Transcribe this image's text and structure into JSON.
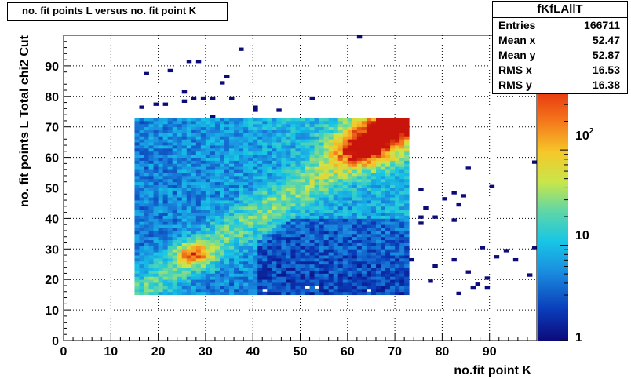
{
  "title": "no. fit points L versus no. fit point K",
  "stats": {
    "name": "fKfLAllT",
    "rows": [
      {
        "label": "Entries",
        "value": "166711"
      },
      {
        "label": "Mean x",
        "value": "52.47"
      },
      {
        "label": "Mean y",
        "value": "52.87"
      },
      {
        "label": "RMS x",
        "value": "16.53"
      },
      {
        "label": "RMS y",
        "value": "16.38"
      }
    ]
  },
  "chart_data": {
    "type": "heatmap",
    "title": "no. fit points L versus no. fit point K",
    "xlabel": "no.fit point K",
    "ylabel": "no. fit points  L  Total chi2 Cut",
    "xlim": [
      0,
      100
    ],
    "ylim": [
      0,
      100
    ],
    "x_ticks": [
      0,
      10,
      20,
      30,
      40,
      50,
      60,
      70,
      80,
      90
    ],
    "y_ticks": [
      0,
      10,
      20,
      30,
      40,
      50,
      60,
      70,
      80,
      90
    ],
    "grid": true,
    "colorbar": {
      "scale": "log",
      "range": [
        1,
        400
      ],
      "tick_labels": [
        "1",
        "10",
        "10^2"
      ]
    },
    "main_region": {
      "x": [
        15,
        73
      ],
      "y": [
        15,
        73
      ]
    },
    "hotspots": [
      {
        "x": 63,
        "y": 63,
        "level": "max"
      },
      {
        "x": 70,
        "y": 71,
        "level": "max"
      },
      {
        "x": 27,
        "y": 28,
        "level": "high"
      }
    ],
    "sparse_points": [
      [
        62,
        99
      ],
      [
        37,
        95
      ],
      [
        26,
        91
      ],
      [
        28,
        91
      ],
      [
        17,
        87
      ],
      [
        22,
        88
      ],
      [
        34,
        86
      ],
      [
        33,
        84
      ],
      [
        25,
        81
      ],
      [
        27,
        79
      ],
      [
        29,
        79
      ],
      [
        31,
        79
      ],
      [
        35,
        79
      ],
      [
        25,
        78
      ],
      [
        19,
        77
      ],
      [
        21,
        77
      ],
      [
        52,
        79
      ],
      [
        16,
        76
      ],
      [
        40,
        76
      ],
      [
        40,
        75
      ],
      [
        45,
        75
      ],
      [
        31,
        73
      ],
      [
        99,
        58
      ],
      [
        85,
        56
      ],
      [
        75,
        49
      ],
      [
        90,
        50
      ],
      [
        82,
        48
      ],
      [
        84,
        47
      ],
      [
        80,
        46
      ],
      [
        76,
        43
      ],
      [
        83,
        44
      ],
      [
        75,
        40
      ],
      [
        78,
        40
      ],
      [
        82,
        39
      ],
      [
        75,
        38
      ],
      [
        88,
        30
      ],
      [
        99,
        30
      ],
      [
        91,
        27
      ],
      [
        93,
        29
      ],
      [
        95,
        26
      ],
      [
        73,
        26
      ],
      [
        82,
        26
      ],
      [
        78,
        24
      ],
      [
        85,
        22
      ],
      [
        98,
        21
      ],
      [
        89,
        20
      ],
      [
        77,
        19
      ],
      [
        87,
        18
      ],
      [
        86,
        17
      ],
      [
        83,
        15
      ],
      [
        89,
        17
      ]
    ]
  }
}
